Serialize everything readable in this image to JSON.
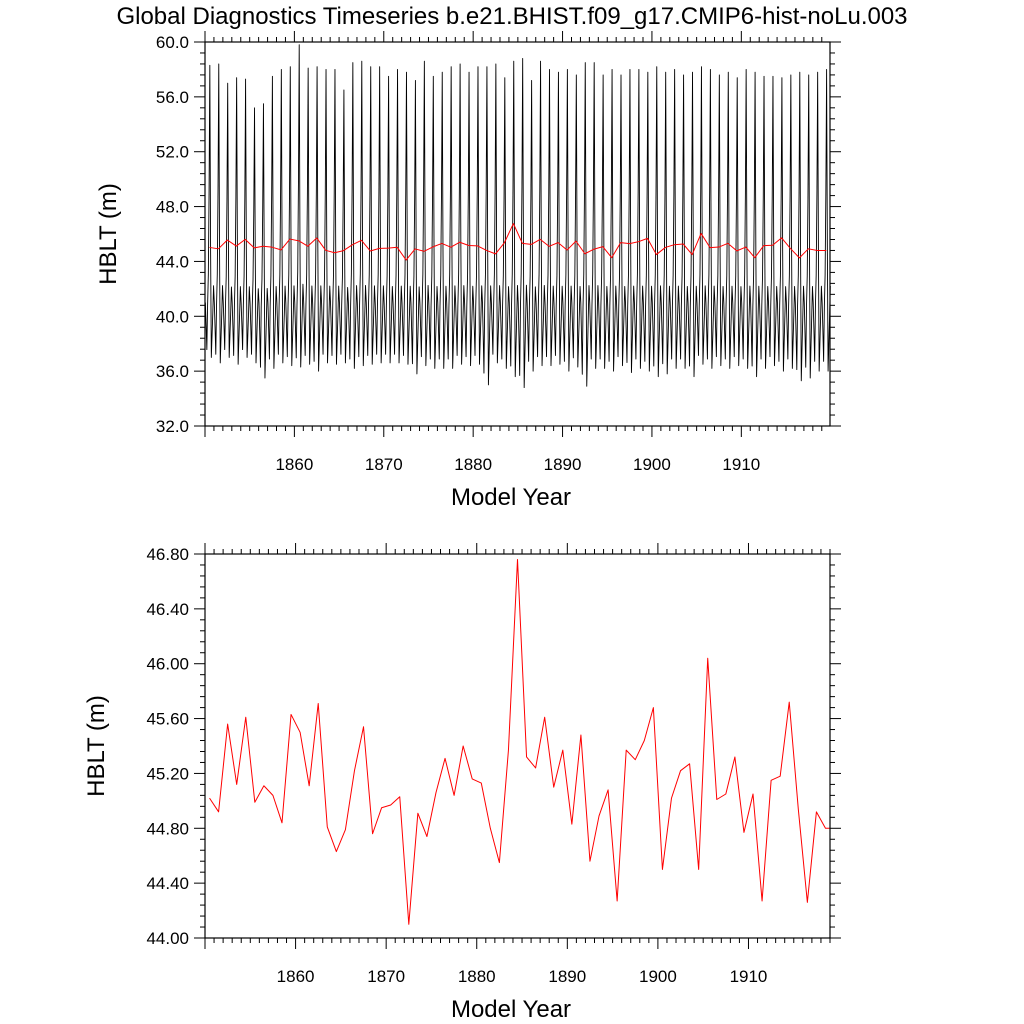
{
  "title": "Global Diagnostics Timeseries b.e21.BHIST.f09_g17.CMIP6-hist-noLu.003",
  "colors": {
    "monthly": "#000000",
    "annual": "#ff0000"
  },
  "chart_data": [
    {
      "type": "line",
      "xlabel": "Model Year",
      "ylabel": "HBLT (m)",
      "xlim": [
        1850,
        1919.92
      ],
      "ylim": [
        32.0,
        60.0
      ],
      "xticks": [
        1860,
        1870,
        1880,
        1890,
        1900,
        1910
      ],
      "xtick_labels": [
        "1860",
        "1870",
        "1880",
        "1890",
        "1900",
        "1910"
      ],
      "yticks": [
        32,
        36,
        40,
        44,
        48,
        52,
        56,
        60
      ],
      "ytick_labels": [
        "32.0",
        "36.0",
        "40.0",
        "44.0",
        "48.0",
        "52.0",
        "56.0",
        "60.0"
      ],
      "series": [
        {
          "kind": "monthly",
          "color": "#000000",
          "x_start": 1850.04,
          "x_step": 0.0833333,
          "monthly_profile": [
            41.0,
            39.3,
            37.4,
            40.8,
            43.0,
            49.0,
            57.9,
            45.0,
            36.8,
            38.5,
            40.2,
            42.2
          ],
          "yearly_max": [
            58.3,
            58.4,
            57.0,
            57.4,
            57.3,
            55.2,
            55.5,
            57.5,
            58.0,
            58.2,
            59.8,
            58.1,
            58.2,
            58.0,
            58.0,
            56.5,
            58.5,
            58.6,
            58.2,
            58.2,
            57.5,
            58.0,
            57.8,
            57.2,
            58.6,
            57.5,
            57.8,
            58.2,
            58.4,
            57.8,
            58.2,
            58.2,
            58.4,
            57.4,
            58.6,
            58.8,
            57.2,
            58.6,
            58.0,
            57.8,
            58.0,
            57.6,
            58.5,
            58.5,
            57.6,
            58.0,
            57.6,
            58.0,
            58.0,
            57.8,
            58.2,
            57.8,
            58.0,
            57.6,
            57.8,
            58.2,
            58.0,
            57.6,
            57.8,
            57.4,
            58.0,
            57.8,
            57.5,
            57.5,
            57.4,
            57.6,
            57.8,
            57.6,
            57.8,
            58.0
          ],
          "yearly_min": [
            37.0,
            36.6,
            37.0,
            36.5,
            37.0,
            36.6,
            35.5,
            36.2,
            36.6,
            36.4,
            36.3,
            36.5,
            36.0,
            36.6,
            36.5,
            36.6,
            36.2,
            36.4,
            36.5,
            36.6,
            36.6,
            36.6,
            36.5,
            35.8,
            36.4,
            36.2,
            36.2,
            36.2,
            36.5,
            36.4,
            36.5,
            35.0,
            36.6,
            36.2,
            35.6,
            34.8,
            36.0,
            36.4,
            36.4,
            36.5,
            36.0,
            36.3,
            34.9,
            36.2,
            36.2,
            36.0,
            36.4,
            35.9,
            36.2,
            36.0,
            35.6,
            35.8,
            36.2,
            36.2,
            35.6,
            36.5,
            36.2,
            36.4,
            36.2,
            36.4,
            36.2,
            35.6,
            36.2,
            36.4,
            36.0,
            36.2,
            35.3,
            35.5,
            36.0,
            36.0
          ]
        },
        {
          "kind": "annual",
          "color": "#ff0000",
          "x": [
            1850.5,
            1851.5,
            1852.5,
            1853.5,
            1854.5,
            1855.5,
            1856.5,
            1857.5,
            1858.5,
            1859.5,
            1860.5,
            1861.5,
            1862.5,
            1863.5,
            1864.5,
            1865.5,
            1866.5,
            1867.5,
            1868.5,
            1869.5,
            1870.5,
            1871.5,
            1872.5,
            1873.5,
            1874.5,
            1875.5,
            1876.5,
            1877.5,
            1878.5,
            1879.5,
            1880.5,
            1881.5,
            1882.5,
            1883.5,
            1884.5,
            1885.5,
            1886.5,
            1887.5,
            1888.5,
            1889.5,
            1890.5,
            1891.5,
            1892.5,
            1893.5,
            1894.5,
            1895.5,
            1896.5,
            1897.5,
            1898.5,
            1899.5,
            1900.5,
            1901.5,
            1902.5,
            1903.5,
            1904.5,
            1905.5,
            1906.5,
            1907.5,
            1908.5,
            1909.5,
            1910.5,
            1911.5,
            1912.5,
            1913.5,
            1914.5,
            1915.5,
            1916.5,
            1917.5,
            1918.5,
            1919.5
          ],
          "values": [
            45.02,
            44.92,
            45.56,
            45.12,
            45.61,
            44.99,
            45.11,
            45.04,
            44.84,
            45.63,
            45.5,
            45.11,
            45.71,
            44.81,
            44.63,
            44.79,
            45.22,
            45.54,
            44.76,
            44.95,
            44.97,
            45.03,
            44.1,
            44.91,
            44.74,
            45.06,
            45.31,
            45.04,
            45.4,
            45.16,
            45.13,
            44.8,
            44.55,
            45.37,
            46.76,
            45.32,
            45.24,
            45.61,
            45.1,
            45.37,
            44.83,
            45.48,
            44.56,
            44.89,
            45.08,
            44.27,
            45.37,
            45.3,
            45.44,
            45.68,
            44.5,
            45.02,
            45.22,
            45.27,
            44.5,
            46.04,
            45.01,
            45.05,
            45.32,
            44.77,
            45.05,
            44.27,
            45.15,
            45.18,
            45.72,
            44.94,
            44.26,
            44.92,
            44.8,
            44.8
          ]
        }
      ]
    },
    {
      "type": "line",
      "xlabel": "Model Year",
      "ylabel": "HBLT (m)",
      "xlim": [
        1850,
        1919
      ],
      "ylim": [
        44.0,
        46.8
      ],
      "xticks": [
        1860,
        1870,
        1880,
        1890,
        1900,
        1910
      ],
      "xtick_labels": [
        "1860",
        "1870",
        "1880",
        "1890",
        "1900",
        "1910"
      ],
      "yticks": [
        44.0,
        44.4,
        44.8,
        45.2,
        45.6,
        46.0,
        46.4,
        46.8
      ],
      "ytick_labels": [
        "44.00",
        "44.40",
        "44.80",
        "45.20",
        "45.60",
        "46.00",
        "46.40",
        "46.80"
      ],
      "series": [
        {
          "kind": "annual",
          "color": "#ff0000",
          "x": [
            1850.5,
            1851.5,
            1852.5,
            1853.5,
            1854.5,
            1855.5,
            1856.5,
            1857.5,
            1858.5,
            1859.5,
            1860.5,
            1861.5,
            1862.5,
            1863.5,
            1864.5,
            1865.5,
            1866.5,
            1867.5,
            1868.5,
            1869.5,
            1870.5,
            1871.5,
            1872.5,
            1873.5,
            1874.5,
            1875.5,
            1876.5,
            1877.5,
            1878.5,
            1879.5,
            1880.5,
            1881.5,
            1882.5,
            1883.5,
            1884.5,
            1885.5,
            1886.5,
            1887.5,
            1888.5,
            1889.5,
            1890.5,
            1891.5,
            1892.5,
            1893.5,
            1894.5,
            1895.5,
            1896.5,
            1897.5,
            1898.5,
            1899.5,
            1900.5,
            1901.5,
            1902.5,
            1903.5,
            1904.5,
            1905.5,
            1906.5,
            1907.5,
            1908.5,
            1909.5,
            1910.5,
            1911.5,
            1912.5,
            1913.5,
            1914.5,
            1915.5,
            1916.5,
            1917.5,
            1918.5,
            1919.0
          ],
          "values": [
            45.02,
            44.92,
            45.56,
            45.12,
            45.61,
            44.99,
            45.11,
            45.04,
            44.84,
            45.63,
            45.5,
            45.11,
            45.71,
            44.81,
            44.63,
            44.79,
            45.22,
            45.54,
            44.76,
            44.95,
            44.97,
            45.03,
            44.1,
            44.91,
            44.74,
            45.06,
            45.31,
            45.04,
            45.4,
            45.16,
            45.13,
            44.8,
            44.55,
            45.37,
            46.76,
            45.32,
            45.24,
            45.61,
            45.1,
            45.37,
            44.83,
            45.48,
            44.56,
            44.89,
            45.08,
            44.27,
            45.37,
            45.3,
            45.44,
            45.68,
            44.5,
            45.02,
            45.22,
            45.27,
            44.5,
            46.04,
            45.01,
            45.05,
            45.32,
            44.77,
            45.05,
            44.27,
            45.15,
            45.18,
            45.72,
            44.94,
            44.26,
            44.92,
            44.8,
            44.8
          ]
        }
      ]
    }
  ]
}
